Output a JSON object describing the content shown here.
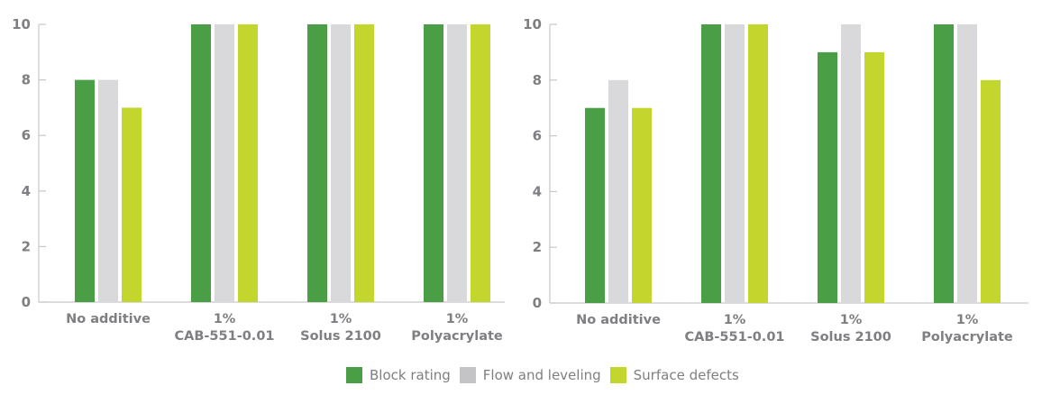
{
  "chart_data": [
    {
      "type": "bar",
      "title": "",
      "xlabel": "",
      "ylabel": "",
      "ylim": [
        0,
        10
      ],
      "yticks": [
        0,
        2,
        4,
        6,
        8,
        10
      ],
      "grid": false,
      "categories": [
        [
          "No additive"
        ],
        [
          "1%",
          "CAB-551-0.01"
        ],
        [
          "1%",
          "Solus 2100"
        ],
        [
          "1%",
          "Polyacrylate"
        ]
      ],
      "series": [
        {
          "name": "Block rating",
          "color": "#4a9e45",
          "values": [
            8,
            10,
            10,
            10
          ]
        },
        {
          "name": "Flow and leveling",
          "color": "#d9d9db",
          "values": [
            8,
            10,
            10,
            10
          ]
        },
        {
          "name": "Surface defects",
          "color": "#c2d62e",
          "values": [
            7,
            10,
            10,
            10
          ]
        }
      ]
    },
    {
      "type": "bar",
      "title": "",
      "xlabel": "",
      "ylabel": "",
      "ylim": [
        0,
        10
      ],
      "yticks": [
        0,
        2,
        4,
        6,
        8,
        10
      ],
      "grid": false,
      "categories": [
        [
          "No additive"
        ],
        [
          "1%",
          "CAB-551-0.01"
        ],
        [
          "1%",
          "Solus 2100"
        ],
        [
          "1%",
          "Polyacrylate"
        ]
      ],
      "series": [
        {
          "name": "Block rating",
          "color": "#4a9e45",
          "values": [
            7,
            10,
            9,
            10
          ]
        },
        {
          "name": "Flow and leveling",
          "color": "#d9d9db",
          "values": [
            8,
            10,
            10,
            10
          ]
        },
        {
          "name": "Surface defects",
          "color": "#c2d62e",
          "values": [
            7,
            10,
            9,
            8
          ]
        }
      ]
    }
  ],
  "legend": {
    "placement": "bottom-center",
    "items": [
      {
        "label": "Block rating",
        "color": "#4a9e45"
      },
      {
        "label": "Flow and leveling",
        "color": "#c4c4c6"
      },
      {
        "label": "Surface defects",
        "color": "#c2d62e"
      }
    ]
  }
}
